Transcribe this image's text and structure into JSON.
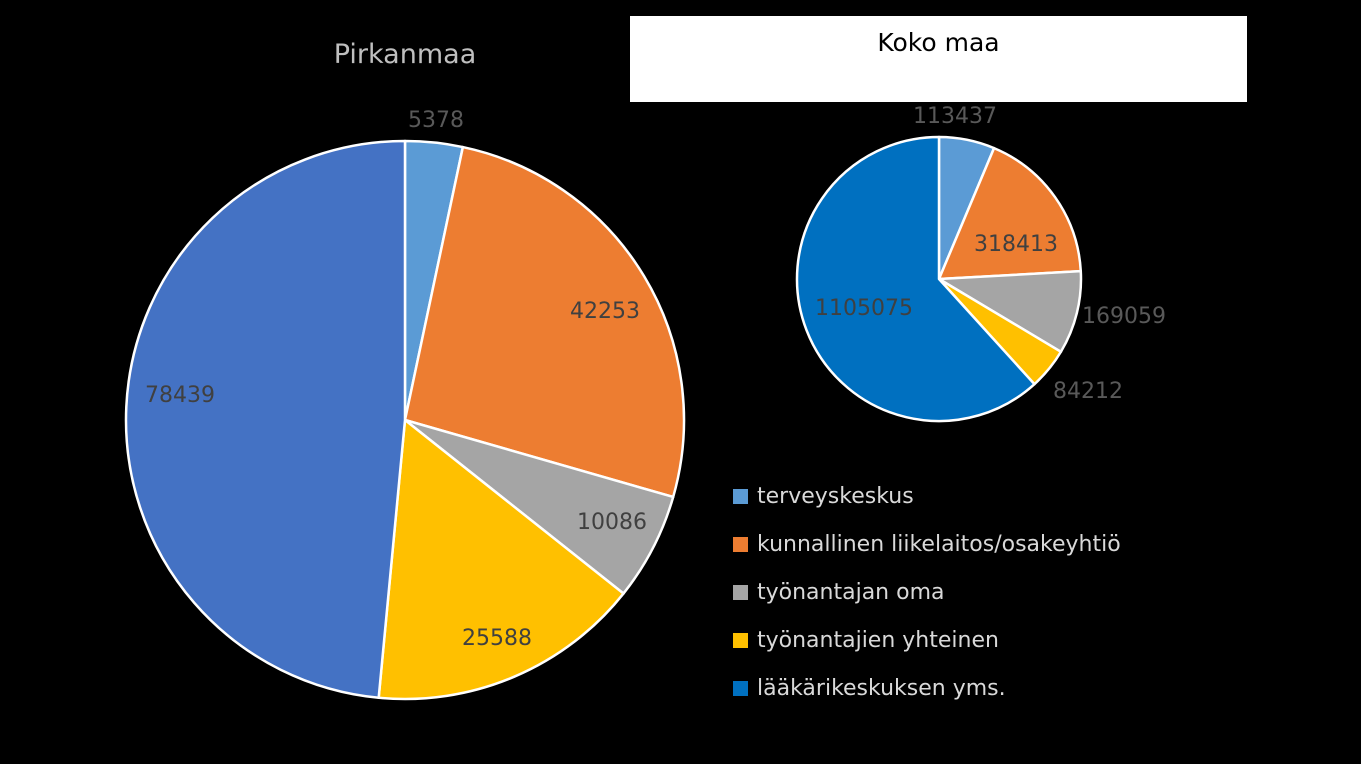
{
  "colors": {
    "background": "#000000",
    "slice_outline": "#ffffff",
    "title_text": "#bfbfbf",
    "legend_text": "#d9d9d9"
  },
  "chart_data": [
    {
      "type": "pie",
      "title": "Pirkanmaa",
      "categories": [
        "terveyskeskus",
        "kunnallinen liikelaitos/osakeyhtiö",
        "työnantajan oma",
        "työnantajien yhteinen",
        "lääkärikeskuksen yms."
      ],
      "values": [
        5378,
        42253,
        10086,
        25588,
        78439
      ],
      "data_labels": [
        "5378",
        "42253",
        "10086",
        "25588",
        "78439"
      ],
      "slice_colors": [
        "#5b9bd5",
        "#ed7d31",
        "#a5a5a5",
        "#ffc000",
        "#4472c4"
      ],
      "legend": "shared-bottom-right"
    },
    {
      "type": "pie",
      "title": "Koko maa",
      "categories": [
        "terveyskeskus",
        "kunnallinen liikelaitos/osakeyhtiö",
        "työnantajan oma",
        "työnantajien yhteinen",
        "lääkärikeskuksen yms."
      ],
      "values": [
        113437,
        318413,
        169059,
        84212,
        1105075
      ],
      "data_labels": [
        "113437",
        "318413",
        "169059",
        "84212",
        "1105075"
      ],
      "slice_colors": [
        "#5b9bd5",
        "#ed7d31",
        "#a5a5a5",
        "#ffc000",
        "#0070c0"
      ],
      "legend": "shared-bottom-right"
    }
  ],
  "legend": {
    "items": [
      {
        "label": "terveyskeskus",
        "color": "#5b9bd5"
      },
      {
        "label": "kunnallinen liikelaitos/osakeyhtiö",
        "color": "#ed7d31"
      },
      {
        "label": "työnantajan oma",
        "color": "#a5a5a5"
      },
      {
        "label": "työnantajien yhteinen",
        "color": "#ffc000"
      },
      {
        "label": "lääkärikeskuksen yms.",
        "color": "#0070c0"
      }
    ]
  }
}
